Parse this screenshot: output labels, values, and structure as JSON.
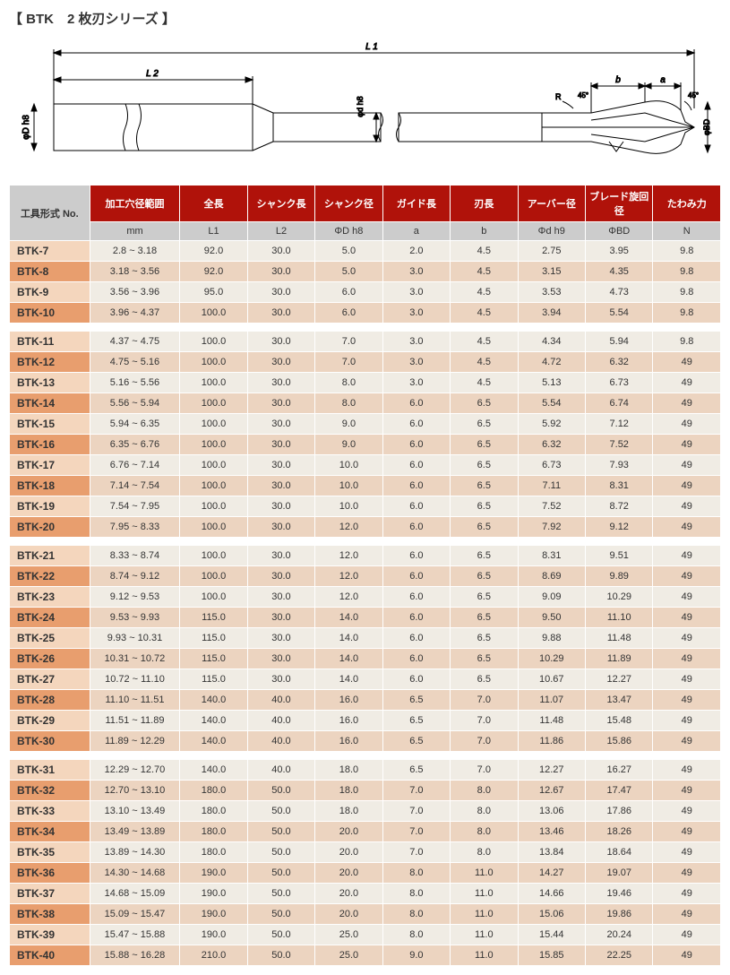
{
  "title": "【 BTK　2 枚刃シリーズ 】",
  "diagram": {
    "labels": {
      "L1": "L 1",
      "L2": "L 2",
      "phiD": "φD h8",
      "phid": "φd h8",
      "phiBD": "φBD",
      "a": "a",
      "b": "b",
      "R": "R",
      "ang1": "45°",
      "ang2": "45°"
    },
    "colors": {
      "stroke": "#000000",
      "fill": "#ffffff"
    }
  },
  "table": {
    "header_model": "工具形式 No.",
    "headers_top": [
      "加工穴径範囲",
      "全長",
      "シャンク長",
      "シャンク径",
      "ガイド長",
      "刃長",
      "アーバー径",
      "ブレード旋回径",
      "たわみ力"
    ],
    "headers_sub": [
      "mm",
      "L1",
      "L2",
      "ΦD h8",
      "a",
      "b",
      "Φd h9",
      "ΦBD",
      "N"
    ],
    "colors": {
      "hdr_bg": "#b0120a",
      "hdr_fg": "#ffffff",
      "sub_bg": "#cccccc",
      "sub_fg": "#333333",
      "row_bg": "#f0ece4",
      "row_alt_bg": "#ecd4c0",
      "model_bg": "#f4d6bd",
      "model_alt_bg": "#e89e6e",
      "border": "#ffffff"
    },
    "groups": [
      {
        "rows": [
          {
            "model": "BTK-7",
            "range": "2.8 ~ 3.18",
            "L1": "92.0",
            "L2": "30.0",
            "phiD": "5.0",
            "a": "2.0",
            "b": "4.5",
            "phid": "2.75",
            "phiBD": "3.95",
            "N": "9.8"
          },
          {
            "model": "BTK-8",
            "range": "3.18 ~ 3.56",
            "L1": "92.0",
            "L2": "30.0",
            "phiD": "5.0",
            "a": "3.0",
            "b": "4.5",
            "phid": "3.15",
            "phiBD": "4.35",
            "N": "9.8"
          },
          {
            "model": "BTK-9",
            "range": "3.56 ~ 3.96",
            "L1": "95.0",
            "L2": "30.0",
            "phiD": "6.0",
            "a": "3.0",
            "b": "4.5",
            "phid": "3.53",
            "phiBD": "4.73",
            "N": "9.8"
          },
          {
            "model": "BTK-10",
            "range": "3.96 ~ 4.37",
            "L1": "100.0",
            "L2": "30.0",
            "phiD": "6.0",
            "a": "3.0",
            "b": "4.5",
            "phid": "3.94",
            "phiBD": "5.54",
            "N": "9.8"
          }
        ]
      },
      {
        "rows": [
          {
            "model": "BTK-11",
            "range": "4.37 ~ 4.75",
            "L1": "100.0",
            "L2": "30.0",
            "phiD": "7.0",
            "a": "3.0",
            "b": "4.5",
            "phid": "4.34",
            "phiBD": "5.94",
            "N": "9.8"
          },
          {
            "model": "BTK-12",
            "range": "4.75 ~ 5.16",
            "L1": "100.0",
            "L2": "30.0",
            "phiD": "7.0",
            "a": "3.0",
            "b": "4.5",
            "phid": "4.72",
            "phiBD": "6.32",
            "N": "49"
          },
          {
            "model": "BTK-13",
            "range": "5.16 ~ 5.56",
            "L1": "100.0",
            "L2": "30.0",
            "phiD": "8.0",
            "a": "3.0",
            "b": "4.5",
            "phid": "5.13",
            "phiBD": "6.73",
            "N": "49"
          },
          {
            "model": "BTK-14",
            "range": "5.56 ~ 5.94",
            "L1": "100.0",
            "L2": "30.0",
            "phiD": "8.0",
            "a": "6.0",
            "b": "6.5",
            "phid": "5.54",
            "phiBD": "6.74",
            "N": "49"
          },
          {
            "model": "BTK-15",
            "range": "5.94 ~ 6.35",
            "L1": "100.0",
            "L2": "30.0",
            "phiD": "9.0",
            "a": "6.0",
            "b": "6.5",
            "phid": "5.92",
            "phiBD": "7.12",
            "N": "49"
          },
          {
            "model": "BTK-16",
            "range": "6.35 ~ 6.76",
            "L1": "100.0",
            "L2": "30.0",
            "phiD": "9.0",
            "a": "6.0",
            "b": "6.5",
            "phid": "6.32",
            "phiBD": "7.52",
            "N": "49"
          },
          {
            "model": "BTK-17",
            "range": "6.76 ~ 7.14",
            "L1": "100.0",
            "L2": "30.0",
            "phiD": "10.0",
            "a": "6.0",
            "b": "6.5",
            "phid": "6.73",
            "phiBD": "7.93",
            "N": "49"
          },
          {
            "model": "BTK-18",
            "range": "7.14 ~ 7.54",
            "L1": "100.0",
            "L2": "30.0",
            "phiD": "10.0",
            "a": "6.0",
            "b": "6.5",
            "phid": "7.11",
            "phiBD": "8.31",
            "N": "49"
          },
          {
            "model": "BTK-19",
            "range": "7.54 ~ 7.95",
            "L1": "100.0",
            "L2": "30.0",
            "phiD": "10.0",
            "a": "6.0",
            "b": "6.5",
            "phid": "7.52",
            "phiBD": "8.72",
            "N": "49"
          },
          {
            "model": "BTK-20",
            "range": "7.95 ~ 8.33",
            "L1": "100.0",
            "L2": "30.0",
            "phiD": "12.0",
            "a": "6.0",
            "b": "6.5",
            "phid": "7.92",
            "phiBD": "9.12",
            "N": "49"
          }
        ]
      },
      {
        "rows": [
          {
            "model": "BTK-21",
            "range": "8.33 ~ 8.74",
            "L1": "100.0",
            "L2": "30.0",
            "phiD": "12.0",
            "a": "6.0",
            "b": "6.5",
            "phid": "8.31",
            "phiBD": "9.51",
            "N": "49"
          },
          {
            "model": "BTK-22",
            "range": "8.74 ~ 9.12",
            "L1": "100.0",
            "L2": "30.0",
            "phiD": "12.0",
            "a": "6.0",
            "b": "6.5",
            "phid": "8.69",
            "phiBD": "9.89",
            "N": "49"
          },
          {
            "model": "BTK-23",
            "range": "9.12 ~ 9.53",
            "L1": "100.0",
            "L2": "30.0",
            "phiD": "12.0",
            "a": "6.0",
            "b": "6.5",
            "phid": "9.09",
            "phiBD": "10.29",
            "N": "49"
          },
          {
            "model": "BTK-24",
            "range": "9.53 ~ 9.93",
            "L1": "115.0",
            "L2": "30.0",
            "phiD": "14.0",
            "a": "6.0",
            "b": "6.5",
            "phid": "9.50",
            "phiBD": "11.10",
            "N": "49"
          },
          {
            "model": "BTK-25",
            "range": "9.93 ~ 10.31",
            "L1": "115.0",
            "L2": "30.0",
            "phiD": "14.0",
            "a": "6.0",
            "b": "6.5",
            "phid": "9.88",
            "phiBD": "11.48",
            "N": "49"
          },
          {
            "model": "BTK-26",
            "range": "10.31 ~ 10.72",
            "L1": "115.0",
            "L2": "30.0",
            "phiD": "14.0",
            "a": "6.0",
            "b": "6.5",
            "phid": "10.29",
            "phiBD": "11.89",
            "N": "49"
          },
          {
            "model": "BTK-27",
            "range": "10.72 ~ 11.10",
            "L1": "115.0",
            "L2": "30.0",
            "phiD": "14.0",
            "a": "6.0",
            "b": "6.5",
            "phid": "10.67",
            "phiBD": "12.27",
            "N": "49"
          },
          {
            "model": "BTK-28",
            "range": "11.10 ~ 11.51",
            "L1": "140.0",
            "L2": "40.0",
            "phiD": "16.0",
            "a": "6.5",
            "b": "7.0",
            "phid": "11.07",
            "phiBD": "13.47",
            "N": "49"
          },
          {
            "model": "BTK-29",
            "range": "11.51 ~ 11.89",
            "L1": "140.0",
            "L2": "40.0",
            "phiD": "16.0",
            "a": "6.5",
            "b": "7.0",
            "phid": "11.48",
            "phiBD": "15.48",
            "N": "49"
          },
          {
            "model": "BTK-30",
            "range": "11.89 ~ 12.29",
            "L1": "140.0",
            "L2": "40.0",
            "phiD": "16.0",
            "a": "6.5",
            "b": "7.0",
            "phid": "11.86",
            "phiBD": "15.86",
            "N": "49"
          }
        ]
      },
      {
        "rows": [
          {
            "model": "BTK-31",
            "range": "12.29 ~ 12.70",
            "L1": "140.0",
            "L2": "40.0",
            "phiD": "18.0",
            "a": "6.5",
            "b": "7.0",
            "phid": "12.27",
            "phiBD": "16.27",
            "N": "49"
          },
          {
            "model": "BTK-32",
            "range": "12.70 ~ 13.10",
            "L1": "180.0",
            "L2": "50.0",
            "phiD": "18.0",
            "a": "7.0",
            "b": "8.0",
            "phid": "12.67",
            "phiBD": "17.47",
            "N": "49"
          },
          {
            "model": "BTK-33",
            "range": "13.10 ~ 13.49",
            "L1": "180.0",
            "L2": "50.0",
            "phiD": "18.0",
            "a": "7.0",
            "b": "8.0",
            "phid": "13.06",
            "phiBD": "17.86",
            "N": "49"
          },
          {
            "model": "BTK-34",
            "range": "13.49 ~ 13.89",
            "L1": "180.0",
            "L2": "50.0",
            "phiD": "20.0",
            "a": "7.0",
            "b": "8.0",
            "phid": "13.46",
            "phiBD": "18.26",
            "N": "49"
          },
          {
            "model": "BTK-35",
            "range": "13.89 ~ 14.30",
            "L1": "180.0",
            "L2": "50.0",
            "phiD": "20.0",
            "a": "7.0",
            "b": "8.0",
            "phid": "13.84",
            "phiBD": "18.64",
            "N": "49"
          },
          {
            "model": "BTK-36",
            "range": "14.30 ~ 14.68",
            "L1": "190.0",
            "L2": "50.0",
            "phiD": "20.0",
            "a": "8.0",
            "b": "11.0",
            "phid": "14.27",
            "phiBD": "19.07",
            "N": "49"
          },
          {
            "model": "BTK-37",
            "range": "14.68 ~ 15.09",
            "L1": "190.0",
            "L2": "50.0",
            "phiD": "20.0",
            "a": "8.0",
            "b": "11.0",
            "phid": "14.66",
            "phiBD": "19.46",
            "N": "49"
          },
          {
            "model": "BTK-38",
            "range": "15.09 ~ 15.47",
            "L1": "190.0",
            "L2": "50.0",
            "phiD": "20.0",
            "a": "8.0",
            "b": "11.0",
            "phid": "15.06",
            "phiBD": "19.86",
            "N": "49"
          },
          {
            "model": "BTK-39",
            "range": "15.47 ~ 15.88",
            "L1": "190.0",
            "L2": "50.0",
            "phiD": "25.0",
            "a": "8.0",
            "b": "11.0",
            "phid": "15.44",
            "phiBD": "20.24",
            "N": "49"
          },
          {
            "model": "BTK-40",
            "range": "15.88 ~ 16.28",
            "L1": "210.0",
            "L2": "50.0",
            "phiD": "25.0",
            "a": "9.0",
            "b": "11.0",
            "phid": "15.85",
            "phiBD": "22.25",
            "N": "49"
          }
        ]
      }
    ]
  }
}
